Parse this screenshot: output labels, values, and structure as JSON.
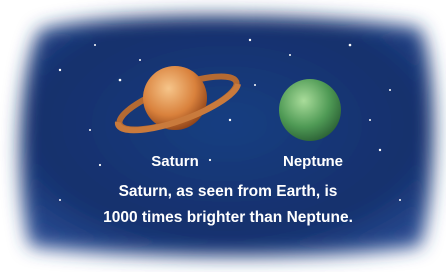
{
  "labels": {
    "saturn": "Saturn",
    "neptune": "Neptune"
  },
  "caption": {
    "lines": [
      "Saturn, as seen from Earth, is",
      "1000 times brighter than Neptune."
    ]
  }
}
